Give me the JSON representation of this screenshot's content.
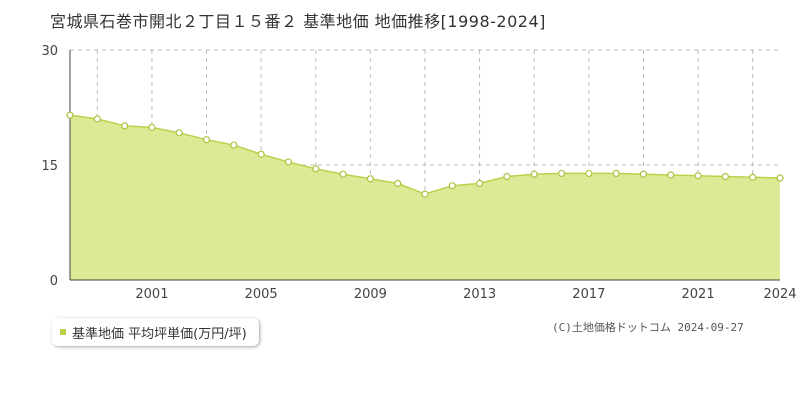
{
  "chart_data": {
    "type": "area",
    "title": "宮城県石巻市開北２丁目１５番２ 基準地価 地価推移[1998-2024]",
    "xlabel": "",
    "ylabel": "",
    "x": [
      1998,
      1999,
      2000,
      2001,
      2002,
      2003,
      2004,
      2005,
      2006,
      2007,
      2008,
      2009,
      2010,
      2011,
      2012,
      2013,
      2014,
      2015,
      2016,
      2017,
      2018,
      2019,
      2020,
      2021,
      2022,
      2023,
      2024
    ],
    "series": [
      {
        "name": "基準地価 平均坪単価(万円/坪)",
        "values": [
          21.5,
          21.0,
          20.1,
          19.9,
          19.2,
          18.3,
          17.6,
          16.4,
          15.4,
          14.5,
          13.8,
          13.2,
          12.6,
          11.2,
          12.3,
          12.6,
          13.5,
          13.8,
          13.9,
          13.9,
          13.9,
          13.8,
          13.7,
          13.6,
          13.5,
          13.4,
          13.3
        ]
      }
    ],
    "y_ticks": [
      "0",
      "15",
      "30"
    ],
    "x_ticks": [
      "2001",
      "2005",
      "2009",
      "2013",
      "2017",
      "2021",
      "2024"
    ],
    "ylim": [
      0,
      30
    ],
    "xlim": [
      1998,
      2024
    ],
    "grid": true,
    "legend_placement": "bottom-left",
    "colors": {
      "fill": "#dcea96",
      "line": "#b7d34a",
      "marker_stroke": "#a8c43f",
      "marker_fill": "#ffffff"
    }
  },
  "legend": {
    "label": "基準地価 平均坪単価(万円/坪)"
  },
  "copyright": "(C)土地価格ドットコム 2024-09-27"
}
